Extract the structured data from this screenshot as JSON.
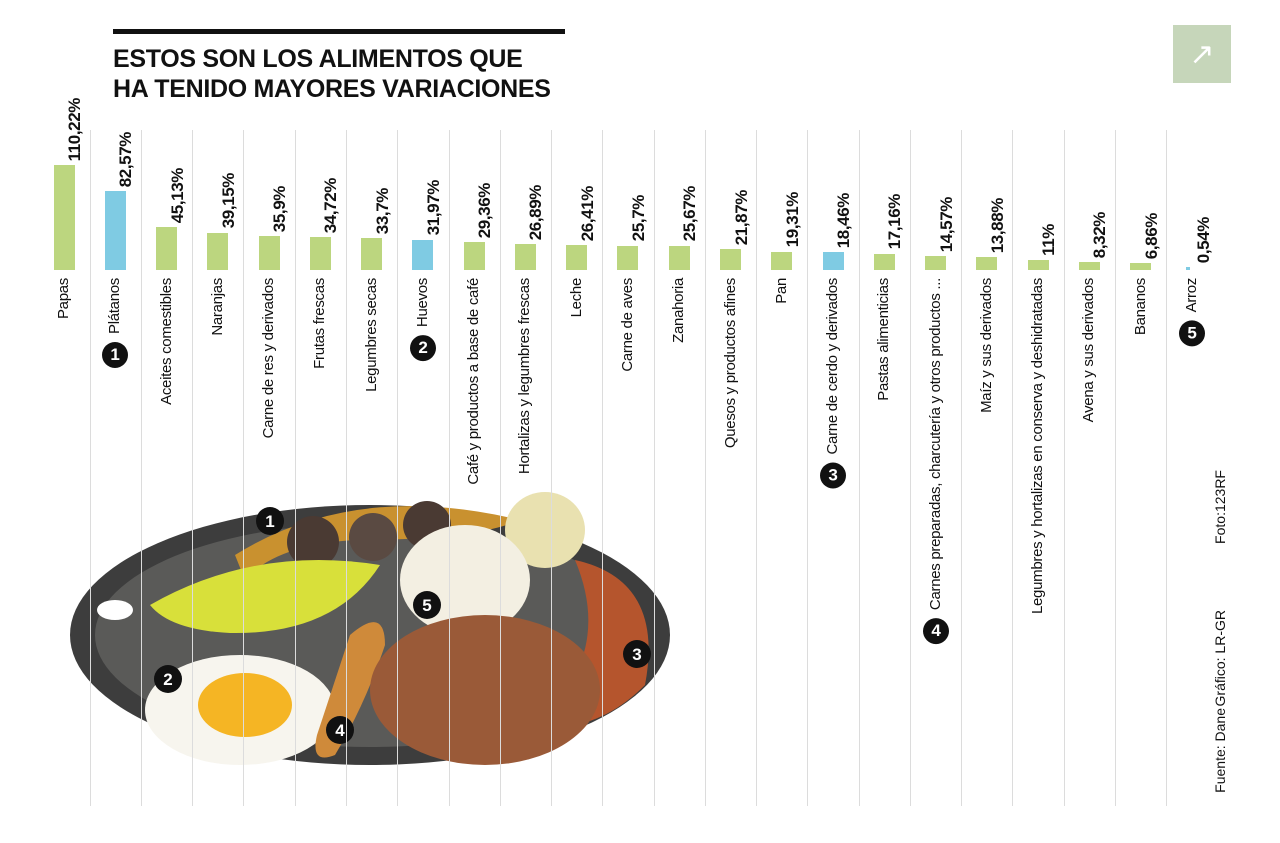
{
  "header": {
    "title_line1": "ESTOS SON LOS ALIMENTOS QUE",
    "title_line2": "HA TENIDO MAYORES VARIACIONES",
    "expand_icon": "arrow-up-right-icon"
  },
  "colors": {
    "green": "#bcd67f",
    "blue": "#7fcbe3",
    "divider": "#dcdcdc",
    "button": "#c6d6ba"
  },
  "chart_data": {
    "type": "bar",
    "title": "ESTOS SON LOS ALIMENTOS QUE HA TENIDO MAYORES VARIACIONES",
    "unit": "%",
    "categories": [
      "Papas",
      "Plátanos",
      "Aceites comestibles",
      "Naranjas",
      "Carne de res y derivados",
      "Frutas frescas",
      "Legumbres secas",
      "Huevos",
      "Café y productos a base de café",
      "Hortalizas y legumbres frescas",
      "Leche",
      "Carne de aves",
      "Zanahoria",
      "Quesos y productos afines",
      "Pan",
      "Carne de cerdo y derivados",
      "Pastas alimenticias",
      "Carnes preparadas, charcutería y otros productos ...",
      "Maíz y sus derivados",
      "Legumbres y hortalizas en conserva y deshidratadas",
      "Avena y sus derivados",
      "Bananos",
      "Arroz"
    ],
    "values": [
      110.22,
      82.57,
      45.13,
      39.15,
      35.9,
      34.72,
      33.7,
      31.97,
      29.36,
      26.89,
      26.41,
      25.7,
      25.67,
      21.87,
      19.31,
      18.46,
      17.16,
      14.57,
      13.88,
      11,
      8.32,
      6.86,
      0.54
    ],
    "value_labels": [
      "110,22%",
      "82,57%",
      "45,13%",
      "39,15%",
      "35,9%",
      "34,72%",
      "33,7%",
      "31,97%",
      "29,36%",
      "26,89%",
      "26,41%",
      "25,7%",
      "25,67%",
      "21,87%",
      "19,31%",
      "18,46%",
      "17,16%",
      "14,57%",
      "13,88%",
      "11%",
      "8,32%",
      "6,86%",
      "0,54%"
    ],
    "highlight": [
      "",
      "blue",
      "",
      "",
      "",
      "",
      "",
      "blue",
      "",
      "",
      "",
      "",
      "",
      "",
      "",
      "blue",
      "",
      "",
      "",
      "",
      "",
      "",
      "blue"
    ],
    "markers": [
      "",
      "1",
      "",
      "",
      "",
      "",
      "",
      "2",
      "",
      "",
      "",
      "",
      "",
      "",
      "",
      "3",
      "",
      "4",
      "",
      "",
      "",
      "",
      "5"
    ],
    "ylim": [
      0,
      110.22
    ],
    "grid": false
  },
  "photo_markers": [
    "1",
    "2",
    "3",
    "4",
    "5"
  ],
  "credits": {
    "source": "Fuente: Dane",
    "graphic": "Gráfico: LR-GR",
    "photo": "Foto:123RF"
  }
}
